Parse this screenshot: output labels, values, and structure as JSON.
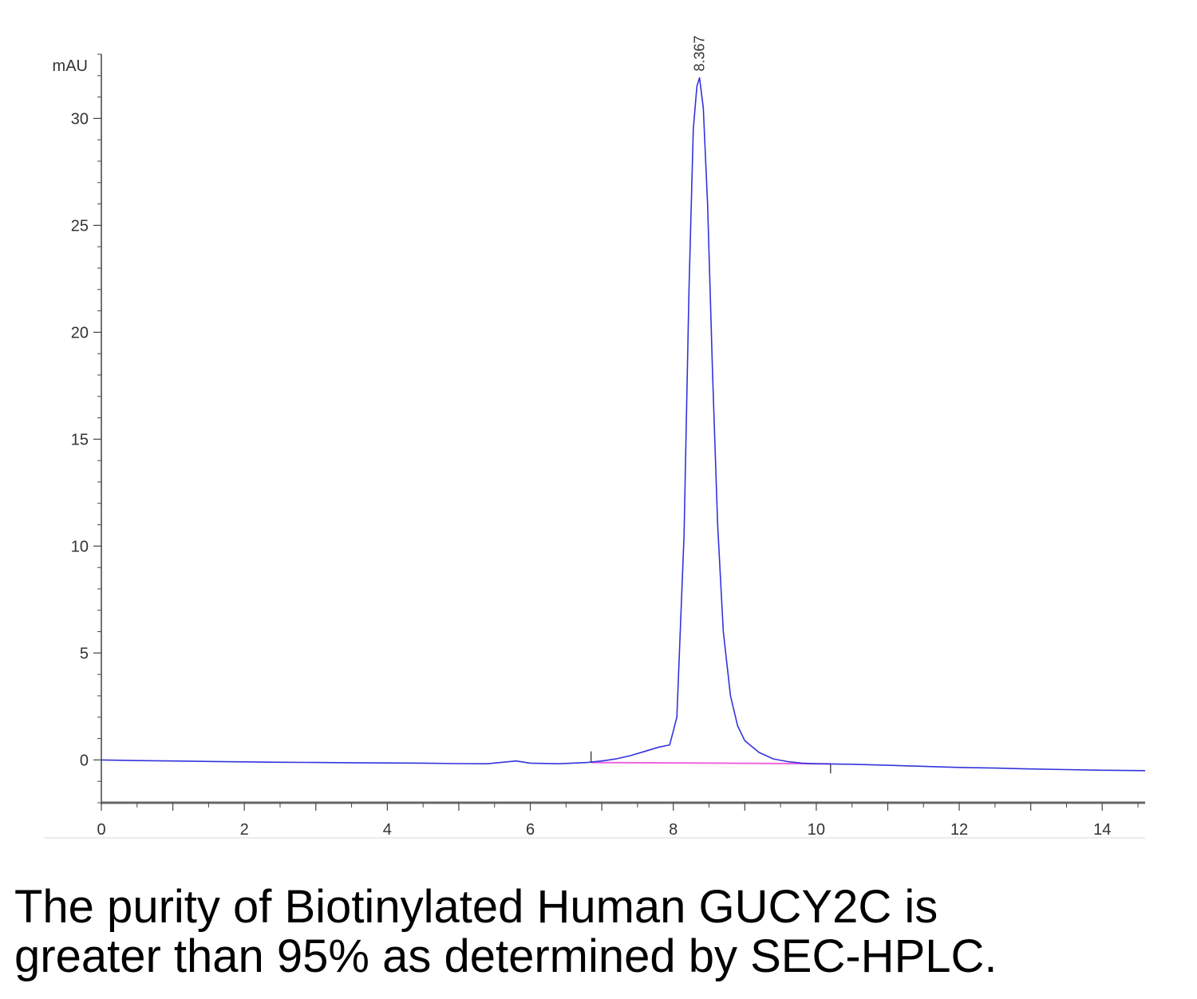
{
  "chart_data": {
    "type": "line",
    "title": "",
    "xlabel": "",
    "ylabel": "mAU",
    "xlim": [
      0,
      14.6
    ],
    "ylim": [
      -2,
      33
    ],
    "x_ticks": [
      0,
      2,
      4,
      6,
      8,
      10,
      12,
      14
    ],
    "y_ticks": [
      0,
      5,
      10,
      15,
      20,
      25,
      30
    ],
    "grid": false,
    "colors": {
      "trace": "#3333dd",
      "baseline": "#ee66dd",
      "axis": "#444444"
    },
    "series": [
      {
        "x": [
          0,
          0.5,
          1,
          1.5,
          2,
          2.5,
          3,
          3.5,
          4,
          4.5,
          5,
          5.4,
          5.8,
          6.0,
          6.4,
          6.8,
          7.0,
          7.2,
          7.4,
          7.6,
          7.8,
          7.95,
          8.05,
          8.15,
          8.22,
          8.28,
          8.33,
          8.367,
          8.42,
          8.48,
          8.55,
          8.62,
          8.7,
          8.8,
          8.9,
          9.0,
          9.2,
          9.4,
          9.6,
          9.8,
          10.0,
          10.5,
          11.0,
          11.5,
          12.0,
          12.5,
          13.0,
          13.5,
          14.0,
          14.6
        ],
        "y": [
          0.0,
          -0.03,
          -0.05,
          -0.07,
          -0.09,
          -0.11,
          -0.12,
          -0.13,
          -0.14,
          -0.15,
          -0.17,
          -0.18,
          -0.05,
          -0.15,
          -0.18,
          -0.12,
          -0.05,
          0.05,
          0.2,
          0.4,
          0.6,
          0.7,
          2.0,
          10.5,
          22.0,
          29.5,
          31.5,
          31.9,
          30.5,
          26.0,
          18.0,
          11.0,
          6.0,
          3.0,
          1.6,
          0.9,
          0.35,
          0.05,
          -0.08,
          -0.15,
          -0.18,
          -0.2,
          -0.25,
          -0.3,
          -0.35,
          -0.38,
          -0.42,
          -0.45,
          -0.48,
          -0.5
        ]
      }
    ],
    "integration_baseline": {
      "x": [
        6.85,
        10.2
      ],
      "y": [
        -0.12,
        -0.18
      ]
    },
    "annotations": [
      {
        "text": "8.367",
        "x": 8.367,
        "y": 31.9
      }
    ]
  },
  "caption": {
    "line1": "The purity of Biotinylated Human GUCY2C is",
    "line2": "greater than 95% as determined by SEC-HPLC."
  }
}
